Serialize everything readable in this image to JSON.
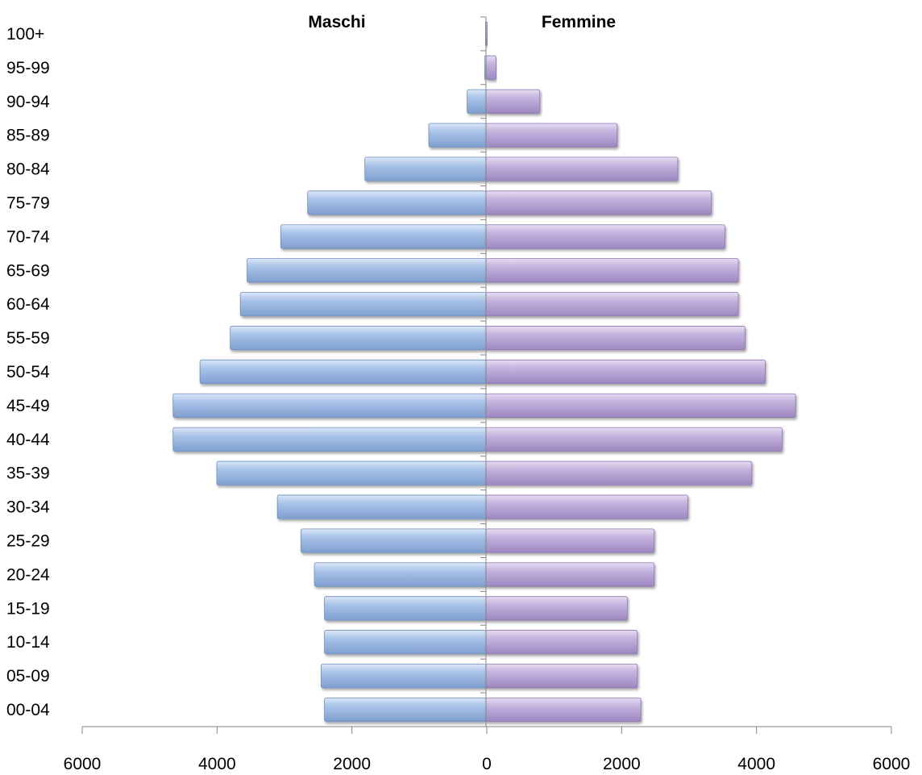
{
  "chart_data": {
    "type": "bar",
    "orientation": "horizontal",
    "layout": "population-pyramid",
    "categories": [
      "00-04",
      "05-09",
      "10-14",
      "15-19",
      "20-24",
      "25-29",
      "30-34",
      "35-39",
      "40-44",
      "45-49",
      "50-54",
      "55-59",
      "60-64",
      "65-69",
      "70-74",
      "75-79",
      "80-84",
      "85-89",
      "90-94",
      "95-99",
      "100+"
    ],
    "series": [
      {
        "name": "Maschi",
        "side": "left",
        "color": "#9BB7E0",
        "values": [
          2400,
          2450,
          2400,
          2400,
          2550,
          2750,
          3100,
          4000,
          4650,
          4650,
          4250,
          3800,
          3650,
          3550,
          3050,
          2650,
          1800,
          850,
          280,
          20,
          10
        ]
      },
      {
        "name": "Femmine",
        "side": "right",
        "color": "#BBA9D6",
        "values": [
          2300,
          2250,
          2250,
          2100,
          2500,
          2500,
          3000,
          3950,
          4400,
          4600,
          4150,
          3850,
          3750,
          3750,
          3550,
          3350,
          2850,
          1950,
          800,
          150,
          20
        ]
      }
    ],
    "x_ticks": [
      "6000",
      "4000",
      "2000",
      "0",
      "2000",
      "4000",
      "6000"
    ],
    "xlim": [
      -6000,
      6000
    ],
    "title": "",
    "xlabel": "",
    "ylabel": "",
    "grid": false,
    "legend": "none"
  }
}
